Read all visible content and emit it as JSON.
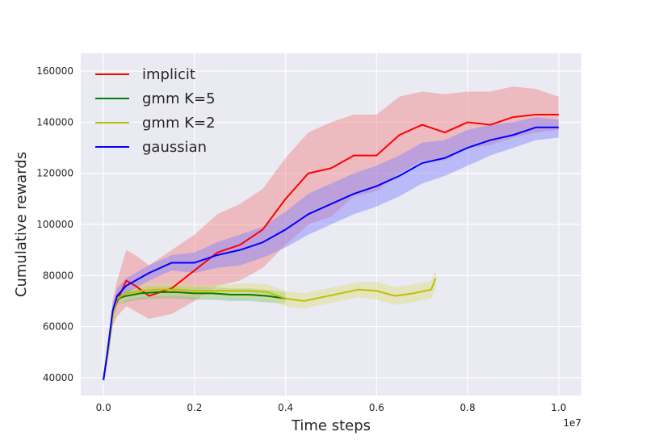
{
  "chart_data": {
    "type": "line",
    "xlabel": "Time steps",
    "ylabel": "Cumulative rewards",
    "x_offset_label": "1e7",
    "xlim": [
      -0.05,
      1.05
    ],
    "ylim": [
      33000,
      167000
    ],
    "x_ticks": [
      0.0,
      0.2,
      0.4,
      0.6,
      0.8,
      1.0
    ],
    "x_tick_labels": [
      "0.0",
      "0.2",
      "0.4",
      "0.6",
      "0.8",
      "1.0"
    ],
    "y_ticks": [
      40000,
      60000,
      80000,
      100000,
      120000,
      140000,
      160000
    ],
    "y_tick_labels": [
      "40000",
      "60000",
      "80000",
      "100000",
      "120000",
      "140000",
      "160000"
    ],
    "grid": true,
    "legend_position": "top-left",
    "background": "#eaeaf2",
    "series": [
      {
        "name": "implicit",
        "color": "#ff0000",
        "fill": "#f08080",
        "x": [
          0.0,
          0.01,
          0.02,
          0.03,
          0.05,
          0.07,
          0.1,
          0.15,
          0.2,
          0.25,
          0.3,
          0.35,
          0.4,
          0.45,
          0.5,
          0.55,
          0.6,
          0.65,
          0.7,
          0.75,
          0.8,
          0.85,
          0.9,
          0.95,
          1.0
        ],
        "y": [
          39500,
          50000,
          65000,
          70000,
          78000,
          76000,
          72000,
          75000,
          82000,
          89000,
          92000,
          98000,
          110000,
          120000,
          122000,
          127000,
          127000,
          135000,
          139000,
          136000,
          140000,
          139000,
          142000,
          143000,
          143000
        ],
        "lower": [
          39500,
          48000,
          60000,
          64000,
          68000,
          66000,
          63000,
          65000,
          70000,
          76000,
          78000,
          83000,
          92000,
          100000,
          103000,
          111000,
          113000,
          120000,
          125000,
          125000,
          130000,
          131000,
          134000,
          136000,
          137000
        ],
        "upper": [
          39500,
          52000,
          70000,
          78000,
          90000,
          88000,
          84000,
          90000,
          96000,
          104000,
          108000,
          114000,
          126000,
          136000,
          140000,
          143000,
          143000,
          150000,
          152000,
          151000,
          152000,
          152000,
          154000,
          153000,
          150000
        ]
      },
      {
        "name": "gmm K=5",
        "color": "#008000",
        "fill": "#80c080",
        "x": [
          0.0,
          0.01,
          0.02,
          0.03,
          0.05,
          0.08,
          0.12,
          0.16,
          0.2,
          0.24,
          0.28,
          0.32,
          0.36,
          0.4
        ],
        "y": [
          40000,
          50000,
          64000,
          71000,
          72000,
          73000,
          73500,
          73500,
          73000,
          73000,
          72500,
          72500,
          72000,
          71000
        ],
        "lower": [
          40000,
          48000,
          61000,
          68500,
          69500,
          70500,
          71000,
          71000,
          70500,
          70500,
          70000,
          70000,
          69500,
          69000
        ],
        "upper": [
          40000,
          52000,
          67000,
          73500,
          74500,
          75500,
          76000,
          76000,
          75500,
          75500,
          75000,
          75000,
          74500,
          73500
        ]
      },
      {
        "name": "gmm K=2",
        "color": "#bfbf00",
        "fill": "#dede80",
        "x": [
          0.0,
          0.01,
          0.02,
          0.03,
          0.05,
          0.08,
          0.12,
          0.16,
          0.2,
          0.24,
          0.28,
          0.32,
          0.36,
          0.4,
          0.44,
          0.48,
          0.52,
          0.56,
          0.6,
          0.64,
          0.68,
          0.72,
          0.73
        ],
        "y": [
          40000,
          50000,
          64000,
          71000,
          73000,
          74000,
          74500,
          74500,
          74000,
          74000,
          74000,
          74000,
          73500,
          71000,
          70000,
          71500,
          73000,
          74500,
          74000,
          72000,
          73000,
          74500,
          79000
        ],
        "lower": [
          40000,
          48000,
          61000,
          68500,
          70500,
          71500,
          72000,
          72000,
          71500,
          71500,
          71500,
          71000,
          70500,
          68000,
          67000,
          68500,
          70000,
          71500,
          70500,
          68500,
          69500,
          71000,
          75000
        ],
        "upper": [
          40000,
          52000,
          67000,
          73500,
          75500,
          76500,
          77000,
          77000,
          76500,
          76500,
          76500,
          77000,
          76500,
          74000,
          73000,
          74500,
          76000,
          77500,
          77500,
          75500,
          76500,
          78000,
          82500
        ]
      },
      {
        "name": "gaussian",
        "color": "#0000ff",
        "fill": "#8080ff",
        "x": [
          0.0,
          0.01,
          0.02,
          0.03,
          0.05,
          0.08,
          0.1,
          0.15,
          0.2,
          0.25,
          0.3,
          0.35,
          0.4,
          0.45,
          0.5,
          0.55,
          0.6,
          0.65,
          0.7,
          0.75,
          0.8,
          0.85,
          0.9,
          0.95,
          1.0
        ],
        "y": [
          39000,
          52000,
          66000,
          72000,
          76000,
          79000,
          81000,
          85000,
          85000,
          88000,
          90000,
          93000,
          98000,
          104000,
          108000,
          112000,
          115000,
          119000,
          124000,
          126000,
          130000,
          133000,
          135000,
          138000,
          138000
        ],
        "lower": [
          39000,
          50000,
          63000,
          69000,
          73000,
          76000,
          78000,
          82000,
          81000,
          83000,
          84000,
          87000,
          91000,
          96000,
          100000,
          104000,
          107000,
          111000,
          116000,
          119000,
          123000,
          127000,
          130000,
          133000,
          134000
        ],
        "upper": [
          39000,
          54000,
          69000,
          75000,
          79000,
          82000,
          84000,
          88000,
          89000,
          93000,
          96000,
          99000,
          105000,
          112000,
          116000,
          120000,
          123000,
          127000,
          132000,
          133000,
          137000,
          139000,
          140000,
          142000,
          141000
        ]
      }
    ]
  }
}
